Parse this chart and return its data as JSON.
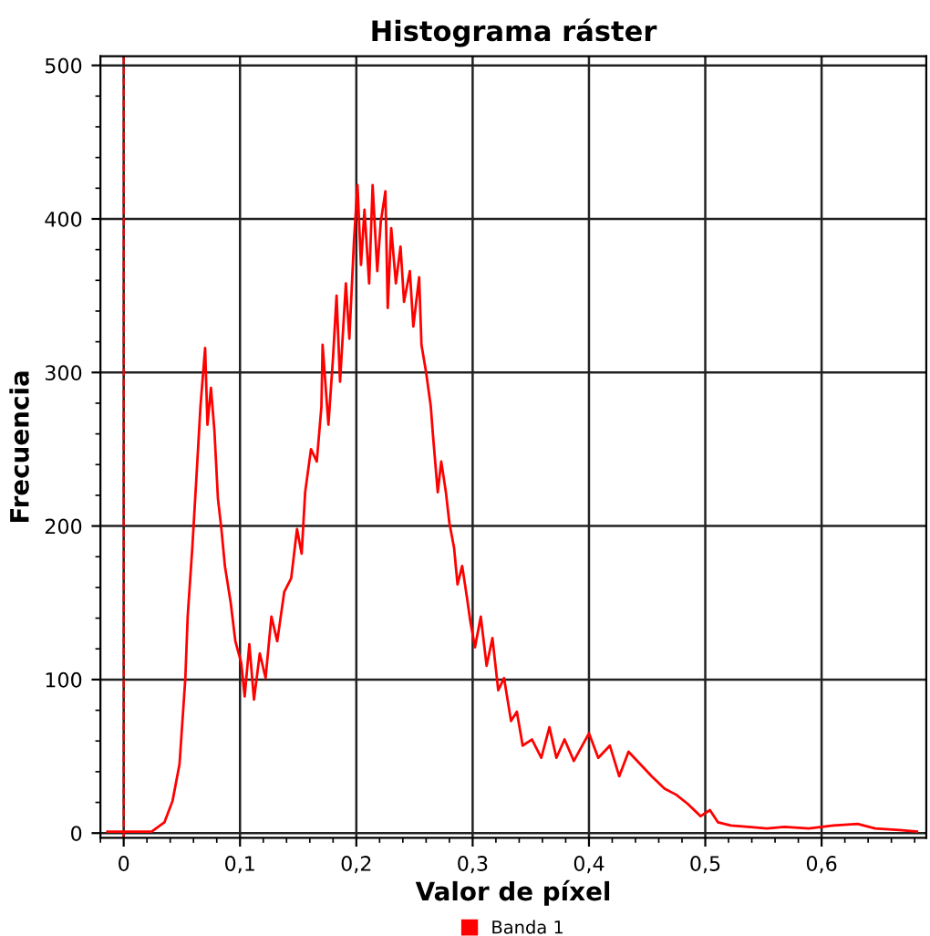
{
  "chart_data": {
    "type": "line",
    "title": "Histograma ráster",
    "xlabel": "Valor de píxel",
    "ylabel": "Frecuencia",
    "xlim": [
      -0.02,
      0.69
    ],
    "ylim": [
      -3,
      506
    ],
    "xticks": [
      {
        "value": 0,
        "label": "0"
      },
      {
        "value": 0.1,
        "label": "0,1"
      },
      {
        "value": 0.2,
        "label": "0,2"
      },
      {
        "value": 0.3,
        "label": "0,3"
      },
      {
        "value": 0.4,
        "label": "0,4"
      },
      {
        "value": 0.5,
        "label": "0,5"
      },
      {
        "value": 0.6,
        "label": "0,6"
      }
    ],
    "yticks": [
      0,
      100,
      200,
      300,
      400,
      500
    ],
    "grid": true,
    "legend": "bottom",
    "marker": "none",
    "line_style": "solid",
    "ref_lines": [
      {
        "axis": "x",
        "value": 0,
        "color": "#ff0000",
        "line_style": "dashed"
      }
    ],
    "series": [
      {
        "name": "Banda 1",
        "color": "#ff0000",
        "x": [
          -0.014,
          0.024,
          0.035,
          0.042,
          0.048,
          0.053,
          0.055,
          0.059,
          0.063,
          0.066,
          0.07,
          0.072,
          0.075,
          0.078,
          0.081,
          0.084,
          0.087,
          0.092,
          0.096,
          0.101,
          0.104,
          0.108,
          0.112,
          0.117,
          0.122,
          0.127,
          0.132,
          0.138,
          0.144,
          0.149,
          0.153,
          0.156,
          0.161,
          0.166,
          0.17,
          0.171,
          0.176,
          0.18,
          0.183,
          0.186,
          0.191,
          0.194,
          0.198,
          0.201,
          0.204,
          0.207,
          0.211,
          0.214,
          0.218,
          0.221,
          0.225,
          0.227,
          0.23,
          0.234,
          0.238,
          0.241,
          0.246,
          0.249,
          0.254,
          0.256,
          0.26,
          0.264,
          0.266,
          0.27,
          0.273,
          0.277,
          0.28,
          0.284,
          0.287,
          0.291,
          0.295,
          0.298,
          0.302,
          0.307,
          0.312,
          0.317,
          0.322,
          0.327,
          0.333,
          0.338,
          0.343,
          0.351,
          0.359,
          0.366,
          0.372,
          0.379,
          0.387,
          0.4,
          0.408,
          0.418,
          0.426,
          0.434,
          0.444,
          0.454,
          0.465,
          0.475,
          0.485,
          0.496,
          0.504,
          0.511,
          0.522,
          0.537,
          0.553,
          0.568,
          0.589,
          0.61,
          0.631,
          0.646,
          0.667,
          0.682
        ],
        "values": [
          1,
          1,
          7,
          21,
          45,
          101,
          141,
          186,
          238,
          278,
          316,
          266,
          290,
          262,
          218,
          198,
          174,
          150,
          125,
          111,
          89,
          123,
          87,
          117,
          101,
          141,
          125,
          157,
          166,
          198,
          182,
          222,
          250,
          242,
          278,
          318,
          266,
          310,
          350,
          294,
          358,
          322,
          386,
          422,
          370,
          406,
          358,
          422,
          366,
          398,
          418,
          342,
          394,
          358,
          382,
          346,
          366,
          330,
          362,
          318,
          300,
          278,
          258,
          222,
          242,
          222,
          202,
          186,
          162,
          174,
          154,
          138,
          121,
          141,
          109,
          127,
          93,
          101,
          73,
          79,
          57,
          61,
          49,
          69,
          49,
          61,
          47,
          65,
          49,
          57,
          37,
          53,
          45,
          37,
          29,
          25,
          19,
          11,
          15,
          7,
          5,
          4,
          3,
          4,
          3,
          5,
          6,
          3,
          2,
          1
        ]
      }
    ]
  }
}
